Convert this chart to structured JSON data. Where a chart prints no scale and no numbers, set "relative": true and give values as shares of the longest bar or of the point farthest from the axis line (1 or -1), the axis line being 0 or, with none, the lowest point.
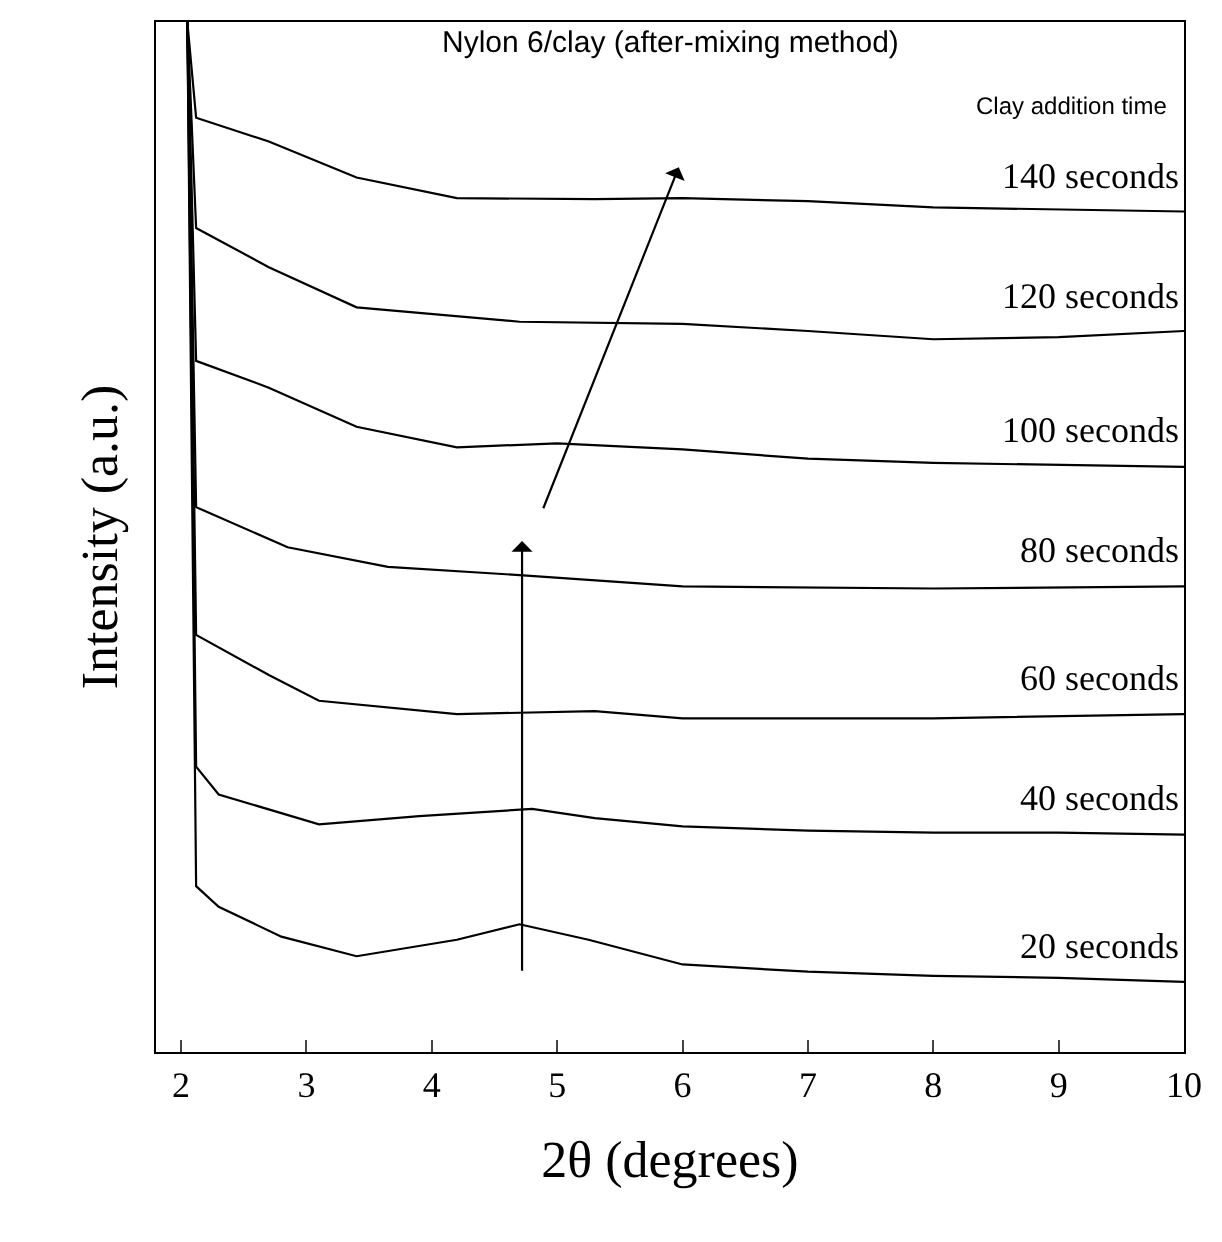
{
  "chart_data": {
    "type": "line",
    "title": "Nylon 6/clay (after-mixing method)",
    "xlabel": "2θ (degrees)",
    "ylabel": "Intensity (a.u.)",
    "relative": true,
    "legend": false,
    "marker": "none",
    "line_style": "solid",
    "xlim": [
      1.8,
      10
    ],
    "xticks": [
      2,
      3,
      4,
      5,
      6,
      7,
      8,
      9,
      10
    ],
    "annotations": [
      "Clay addition time"
    ],
    "series": [
      {
        "name": "20 seconds",
        "color": "#000000",
        "x": [
          2.05,
          2.12,
          2.3,
          2.8,
          3.4,
          4.2,
          4.7,
          5.25,
          6.0,
          7.0,
          8.0,
          9.0,
          10.0
        ],
        "values": [
          1.0,
          0.161,
          0.141,
          0.112,
          0.093,
          0.109,
          0.124,
          0.109,
          0.085,
          0.078,
          0.074,
          0.072,
          0.068
        ]
      },
      {
        "name": "40 seconds",
        "color": "#000000",
        "x": [
          2.05,
          2.12,
          2.3,
          3.1,
          3.9,
          4.8,
          5.3,
          6.0,
          7.0,
          8.0,
          9.0,
          10.0
        ],
        "values": [
          1.0,
          0.277,
          0.25,
          0.221,
          0.229,
          0.236,
          0.227,
          0.219,
          0.215,
          0.213,
          0.213,
          0.211
        ]
      },
      {
        "name": "60 seconds",
        "color": "#000000",
        "x": [
          2.05,
          2.12,
          2.7,
          3.1,
          4.2,
          5.3,
          6.0,
          8.0,
          10.0
        ],
        "values": [
          1.0,
          0.405,
          0.366,
          0.341,
          0.328,
          0.331,
          0.324,
          0.324,
          0.328
        ]
      },
      {
        "name": "80 seconds",
        "color": "#000000",
        "x": [
          2.05,
          2.12,
          2.85,
          3.65,
          4.7,
          6.0,
          8.0,
          10.0
        ],
        "values": [
          1.0,
          0.529,
          0.49,
          0.471,
          0.463,
          0.452,
          0.45,
          0.452
        ]
      },
      {
        "name": "100 seconds",
        "color": "#000000",
        "x": [
          2.05,
          2.12,
          2.7,
          3.4,
          4.2,
          5.0,
          6.0,
          7.0,
          8.0,
          10.0
        ],
        "values": [
          1.0,
          0.671,
          0.645,
          0.607,
          0.587,
          0.591,
          0.585,
          0.576,
          0.572,
          0.568
        ]
      },
      {
        "name": "120 seconds",
        "color": "#000000",
        "x": [
          2.05,
          2.12,
          2.7,
          3.4,
          4.7,
          6.0,
          7.0,
          8.0,
          9.0,
          10.0
        ],
        "values": [
          1.0,
          0.8,
          0.762,
          0.723,
          0.709,
          0.707,
          0.7,
          0.692,
          0.694,
          0.7
        ]
      },
      {
        "name": "140 seconds",
        "color": "#000000",
        "x": [
          2.05,
          2.12,
          2.7,
          3.4,
          4.2,
          5.3,
          6.0,
          7.0,
          8.0,
          10.0
        ],
        "values": [
          1.0,
          0.907,
          0.884,
          0.849,
          0.829,
          0.828,
          0.829,
          0.826,
          0.82,
          0.816
        ]
      }
    ]
  }
}
